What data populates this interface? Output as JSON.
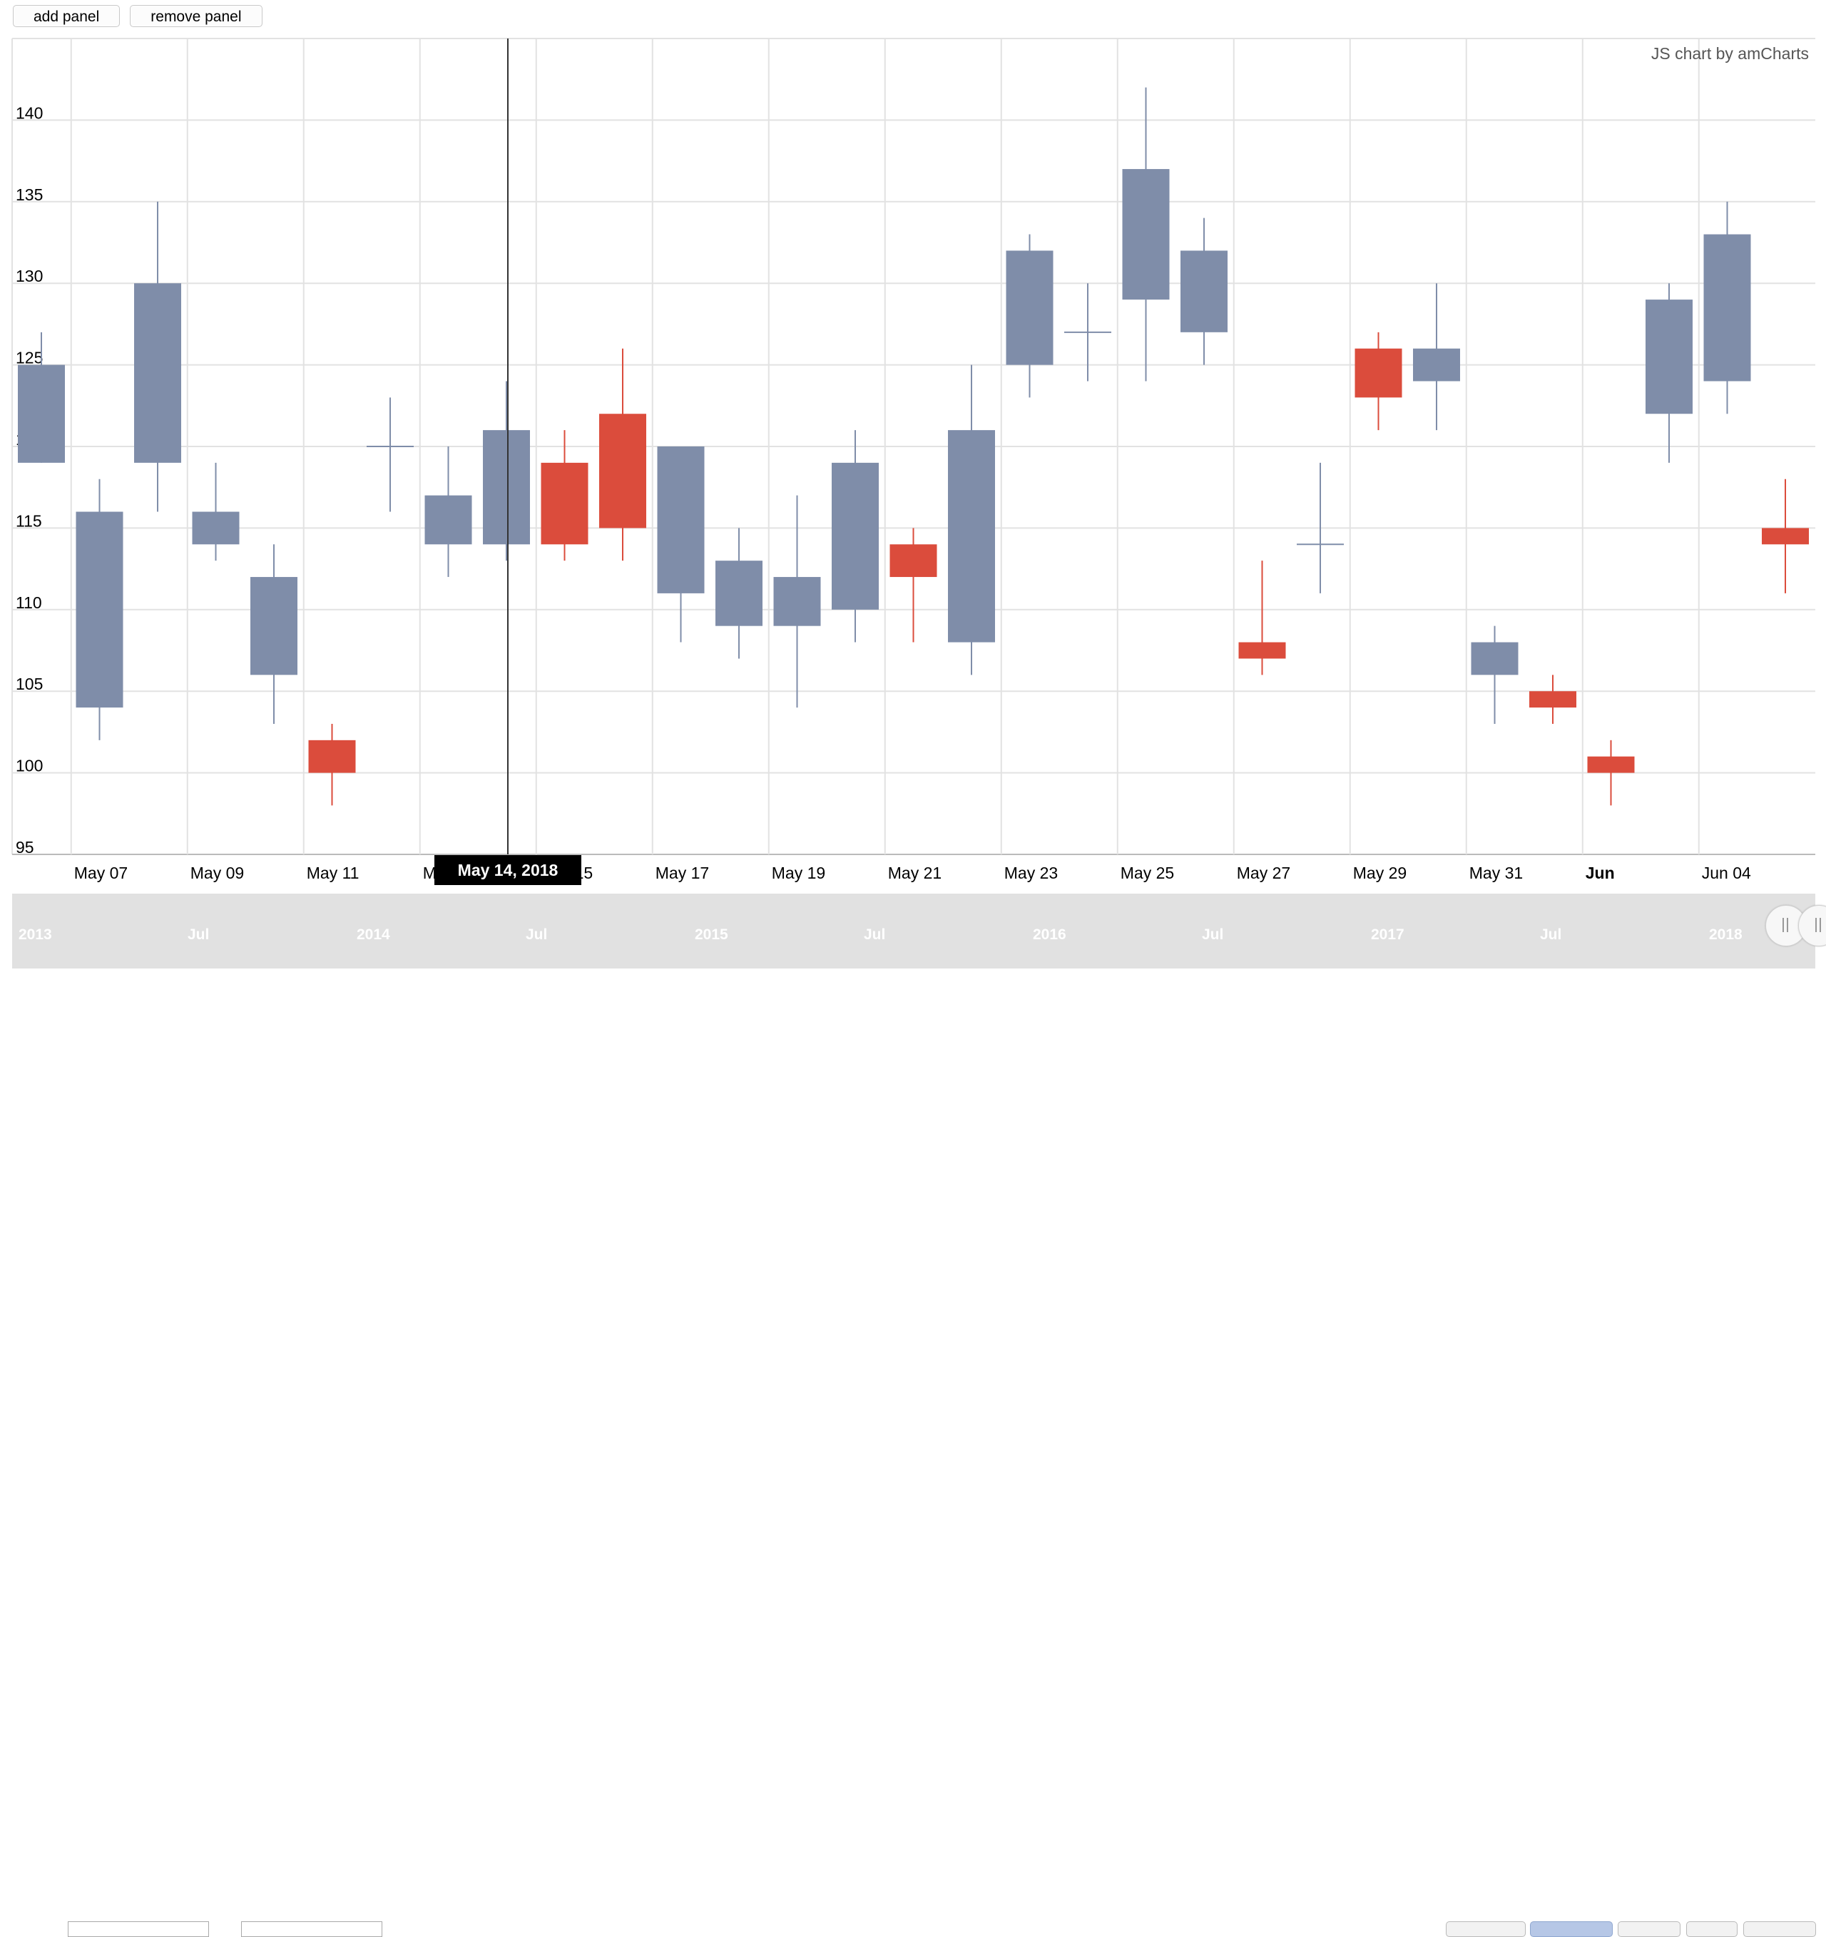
{
  "toolbar": {
    "add_panel_label": "add panel",
    "remove_panel_label": "remove panel"
  },
  "credit": "JS chart by amCharts",
  "cursor_date": "May 14, 2018",
  "colors": {
    "up": "#7f8da9",
    "down": "#db4c3c",
    "grid": "#e2e2e2"
  },
  "scrollbar": {
    "labels": [
      "2013",
      "Jul",
      "2014",
      "Jul",
      "2015",
      "Jul",
      "2016",
      "Jul",
      "2017",
      "Jul",
      "2018"
    ]
  },
  "chart_data": {
    "type": "candlestick",
    "ylim": [
      95,
      145
    ],
    "y_ticks": [
      95,
      100,
      105,
      110,
      115,
      120,
      125,
      130,
      135,
      140
    ],
    "x_tick_labels": [
      "May 07",
      "May 09",
      "May 11",
      "May 13",
      "May 15",
      "May 17",
      "May 19",
      "May 21",
      "May 23",
      "May 25",
      "May 27",
      "May 29",
      "May 31",
      "Jun",
      "Jun 04"
    ],
    "bold_tick": "Jun",
    "candles": [
      {
        "date": "May 06",
        "open": 119,
        "high": 127,
        "low": 119,
        "close": 125
      },
      {
        "date": "May 07",
        "open": 104,
        "high": 118,
        "low": 102,
        "close": 116
      },
      {
        "date": "May 08",
        "open": 119,
        "high": 135,
        "low": 116,
        "close": 130
      },
      {
        "date": "May 09",
        "open": 114,
        "high": 119,
        "low": 113,
        "close": 116
      },
      {
        "date": "May 10",
        "open": 106,
        "high": 114,
        "low": 103,
        "close": 112
      },
      {
        "date": "May 11",
        "open": 102,
        "high": 103,
        "low": 98,
        "close": 100
      },
      {
        "date": "May 12",
        "open": 120,
        "high": 123,
        "low": 116,
        "close": 120
      },
      {
        "date": "May 13",
        "open": 114,
        "high": 120,
        "low": 112,
        "close": 117
      },
      {
        "date": "May 14",
        "open": 114,
        "high": 124,
        "low": 113,
        "close": 121
      },
      {
        "date": "May 15",
        "open": 119,
        "high": 121,
        "low": 113,
        "close": 114
      },
      {
        "date": "May 16",
        "open": 122,
        "high": 126,
        "low": 113,
        "close": 115
      },
      {
        "date": "May 17",
        "open": 111,
        "high": 120,
        "low": 108,
        "close": 120
      },
      {
        "date": "May 18",
        "open": 109,
        "high": 115,
        "low": 107,
        "close": 113
      },
      {
        "date": "May 19",
        "open": 109,
        "high": 117,
        "low": 104,
        "close": 112
      },
      {
        "date": "May 20",
        "open": 110,
        "high": 121,
        "low": 108,
        "close": 119
      },
      {
        "date": "May 21",
        "open": 114,
        "high": 115,
        "low": 108,
        "close": 112
      },
      {
        "date": "May 22",
        "open": 108,
        "high": 125,
        "low": 106,
        "close": 121
      },
      {
        "date": "May 23",
        "open": 125,
        "high": 133,
        "low": 123,
        "close": 132
      },
      {
        "date": "May 24",
        "open": 127,
        "high": 130,
        "low": 124,
        "close": 127
      },
      {
        "date": "May 25",
        "open": 129,
        "high": 142,
        "low": 124,
        "close": 137
      },
      {
        "date": "May 26",
        "open": 127,
        "high": 134,
        "low": 125,
        "close": 132
      },
      {
        "date": "May 27",
        "open": 108,
        "high": 113,
        "low": 106,
        "close": 107
      },
      {
        "date": "May 28",
        "open": 114,
        "high": 119,
        "low": 111,
        "close": 114
      },
      {
        "date": "May 29",
        "open": 126,
        "high": 127,
        "low": 121,
        "close": 123
      },
      {
        "date": "May 30",
        "open": 124,
        "high": 130,
        "low": 121,
        "close": 126
      },
      {
        "date": "May 31",
        "open": 106,
        "high": 109,
        "low": 103,
        "close": 108
      },
      {
        "date": "Jun 01",
        "open": 105,
        "high": 106,
        "low": 103,
        "close": 104
      },
      {
        "date": "Jun 02",
        "open": 101,
        "high": 102,
        "low": 98,
        "close": 100
      },
      {
        "date": "Jun 03",
        "open": 122,
        "high": 130,
        "low": 119,
        "close": 129
      },
      {
        "date": "Jun 04",
        "open": 124,
        "high": 135,
        "low": 122,
        "close": 133
      },
      {
        "date": "Jun 05",
        "open": 115,
        "high": 118,
        "low": 111,
        "close": 114
      }
    ]
  }
}
